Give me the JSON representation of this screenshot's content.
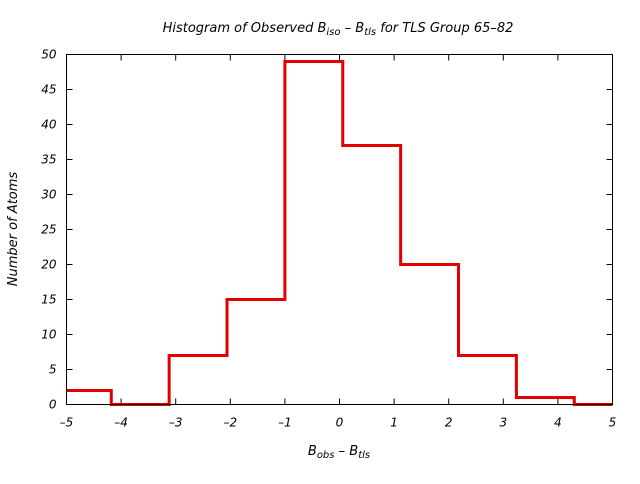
{
  "chart_data": {
    "type": "histogram",
    "title": {
      "prefix": "Histogram of Observed B",
      "sub1": "iso",
      "mid": " – B",
      "sub2": "tls",
      "suffix": " for TLS Group 65–82"
    },
    "xlabel": {
      "b1": "B",
      "s1": "obs",
      "mid": " – B",
      "s2": "tls"
    },
    "ylabel": "Number of Atoms",
    "xlim": [
      -5,
      5
    ],
    "ylim": [
      0,
      50
    ],
    "xticks": [
      -5,
      -4,
      -3,
      -2,
      -1,
      0,
      1,
      2,
      3,
      4,
      5
    ],
    "xtick_labels": [
      "–5",
      "–4",
      "–3",
      "–2",
      "–1",
      "0",
      "1",
      "2",
      "3",
      "4",
      "5"
    ],
    "yticks": [
      0,
      5,
      10,
      15,
      20,
      25,
      30,
      35,
      40,
      45,
      50
    ],
    "ytick_labels": [
      "0",
      "5",
      "10",
      "15",
      "20",
      "25",
      "30",
      "35",
      "40",
      "45",
      "50"
    ],
    "bin_edges": [
      -5,
      -4.18,
      -3.12,
      -2.06,
      -1.0,
      0.06,
      1.12,
      2.18,
      3.24,
      4.3,
      5
    ],
    "counts": [
      2,
      0,
      7,
      15,
      49,
      37,
      20,
      7,
      1,
      0
    ],
    "color": "#e00000"
  }
}
